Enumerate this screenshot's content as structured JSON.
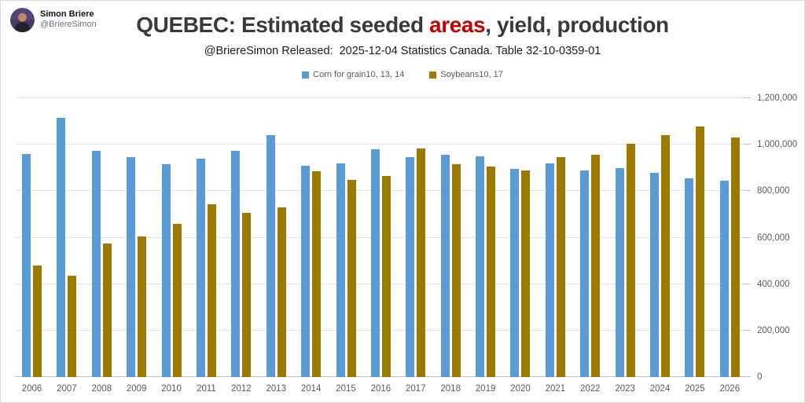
{
  "profile": {
    "name": "Simon Briere",
    "handle": "@BriereSimon"
  },
  "title": {
    "prefix": "QUEBEC: Estimated seeded ",
    "highlight": "areas",
    "suffix": ", yield, production",
    "highlight_color": "#c00000"
  },
  "subtitle": "@BriereSimon Released:  2025-12-04 Statistics Canada. Table 32-10-0359-01",
  "legend": [
    {
      "label": "Corn for grain10, 13, 14",
      "color": "#5b9bd5"
    },
    {
      "label": "Soybeans10, 17",
      "color": "#9a7b00"
    }
  ],
  "chart_data": {
    "type": "bar",
    "title": "QUEBEC: Estimated seeded areas, yield, production",
    "subtitle": "@BriereSimon Released: 2025-12-04 Statistics Canada. Table 32-10-0359-01",
    "categories": [
      2006,
      2007,
      2008,
      2009,
      2010,
      2011,
      2012,
      2013,
      2014,
      2015,
      2016,
      2017,
      2018,
      2019,
      2020,
      2021,
      2022,
      2023,
      2024,
      2025,
      2026
    ],
    "series": [
      {
        "name": "Corn for grain10, 13, 14",
        "color": "#5b9bd5",
        "values": [
          960000,
          1115000,
          975000,
          945000,
          915000,
          940000,
          975000,
          1040000,
          910000,
          920000,
          980000,
          945000,
          955000,
          950000,
          895000,
          920000,
          890000,
          900000,
          880000,
          855000,
          845000
        ]
      },
      {
        "name": "Soybeans10, 17",
        "color": "#9a7b00",
        "values": [
          480000,
          435000,
          575000,
          605000,
          660000,
          745000,
          705000,
          730000,
          885000,
          850000,
          865000,
          985000,
          915000,
          905000,
          890000,
          945000,
          955000,
          1005000,
          1040000,
          1080000,
          1030000
        ]
      }
    ],
    "xlabel": "",
    "ylabel": "",
    "ylim": [
      0,
      1200000
    ],
    "ytick_interval": 200000,
    "ytick_labels": [
      "0",
      "200,000",
      "400,000",
      "600,000",
      "800,000",
      "1,000,000",
      "1,200,000"
    ],
    "grid": true,
    "legend_position": "top",
    "y_axis_side": "right"
  }
}
